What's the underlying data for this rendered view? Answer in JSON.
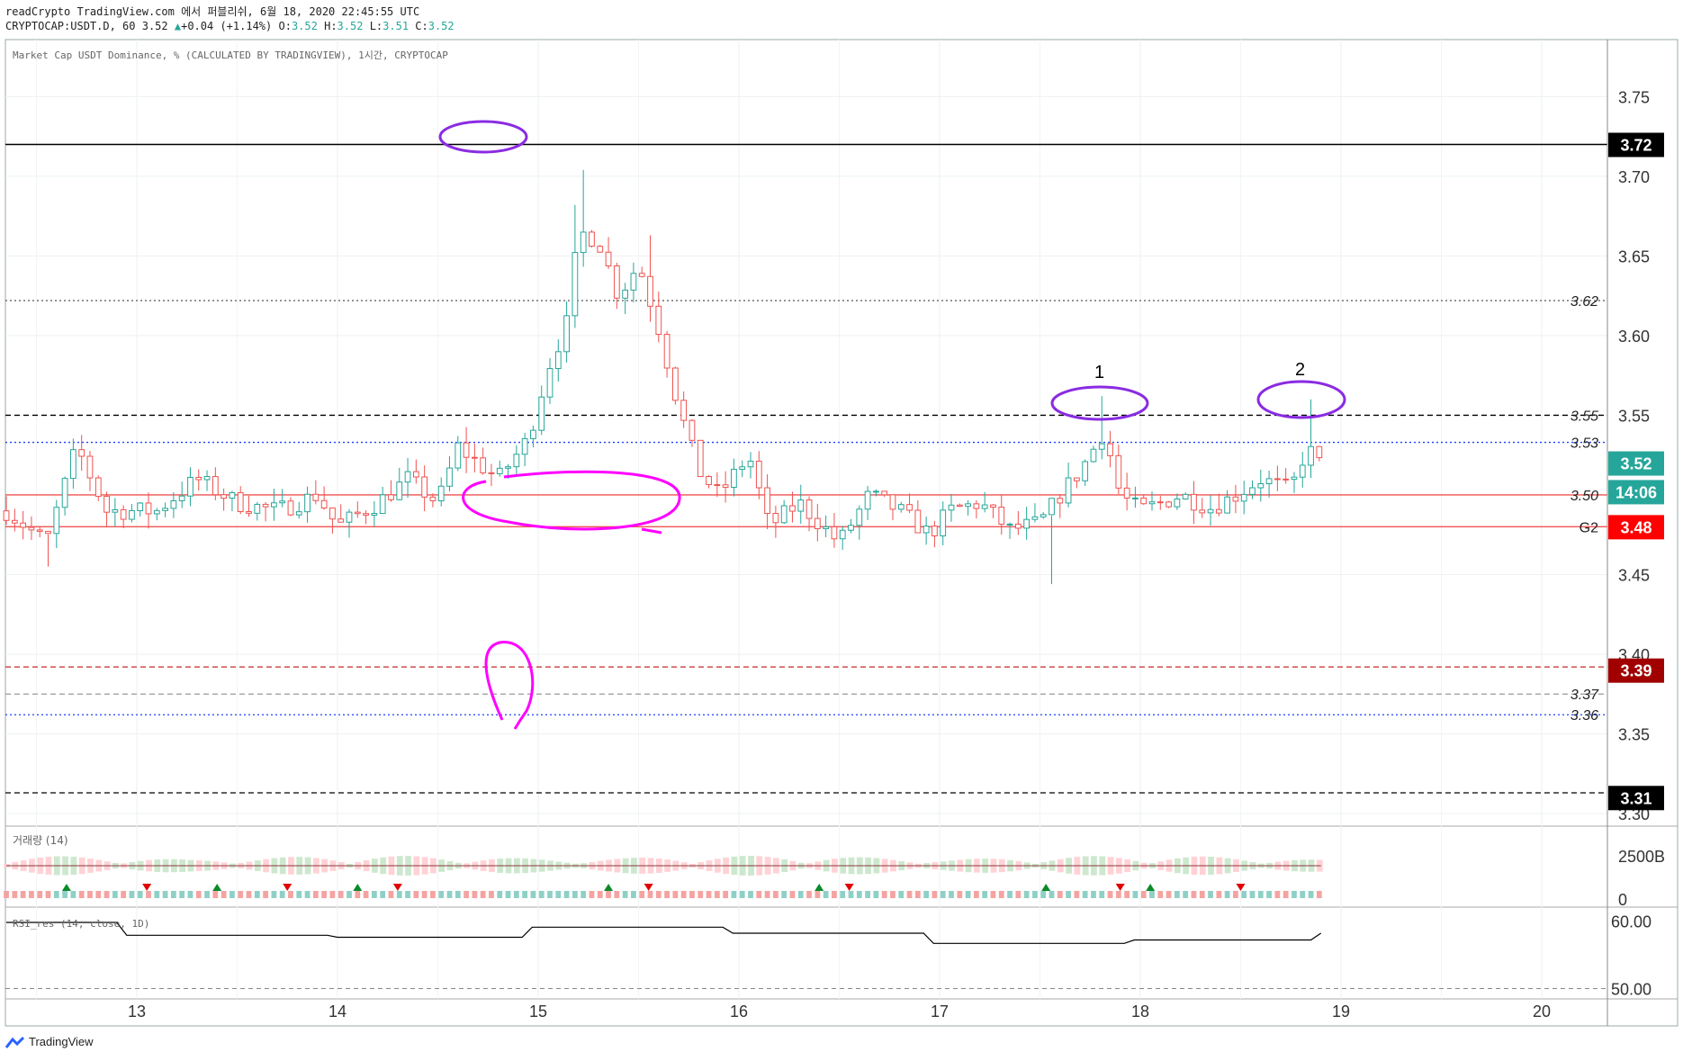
{
  "header": {
    "line1": "readCrypto TradingView.com 에서 퍼블리쉬, 6월 18, 2020 22:45:55 UTC",
    "symbol": "CRYPTOCAP:USDT.D, 60",
    "last": "3.52",
    "change_arrow": "▲",
    "change": "+0.04 (+1.14%)",
    "o_label": "O:",
    "o_val": "3.52",
    "h_label": "H:",
    "h_val": "3.52",
    "l_label": "L:",
    "l_val": "3.51",
    "c_label": "C:",
    "c_val": "3.52"
  },
  "legend": {
    "main": "Market Cap USDT Dominance, % (CALCULATED BY TRADINGVIEW), 1시간, CRYPTOCAP",
    "volume": "거래량 (14)",
    "rsi": "RSI_res (14, close, 1D)"
  },
  "brand": "TradingView",
  "colors": {
    "up": "#26a69a",
    "down": "#ef5350",
    "annotation_purple": "#8a2be2",
    "annotation_magenta": "#ff00ff",
    "line_blue": "#1e40ff"
  },
  "chart_data": [
    {
      "type": "candlestick",
      "ylim": [
        3.3,
        3.77
      ],
      "y_ticks": [
        "3.75",
        "3.70",
        "3.65",
        "3.60",
        "3.55",
        "3.50",
        "3.45",
        "3.40",
        "3.35",
        "3.30"
      ],
      "x_ticks": [
        "13",
        "14",
        "15",
        "16",
        "17",
        "18",
        "19",
        "20"
      ],
      "price_badges": [
        {
          "label": "3.72",
          "value": 3.72,
          "color": "#000000"
        },
        {
          "label": "3.52",
          "value": 3.52,
          "color": "#26a69a"
        },
        {
          "label": "14:06",
          "value": 3.502,
          "color": "#26a69a"
        },
        {
          "label": "3.48",
          "value": 3.48,
          "color": "#ff0000"
        },
        {
          "label": "3.39",
          "value": 3.39,
          "color": "#a00000"
        },
        {
          "label": "3.31",
          "value": 3.31,
          "color": "#000000"
        }
      ],
      "horizontal_lines": [
        {
          "value": 3.72,
          "style": "solid",
          "color": "#000000",
          "label": ""
        },
        {
          "value": 3.622,
          "style": "dotted",
          "color": "#555555",
          "label": "3.62"
        },
        {
          "value": 3.55,
          "style": "dashed",
          "color": "#000000",
          "label": "3.55"
        },
        {
          "value": 3.533,
          "style": "dotted",
          "color": "#1e40ff",
          "label": "3.53"
        },
        {
          "value": 3.5,
          "style": "solid",
          "color": "#ef5350",
          "label": "3.50"
        },
        {
          "value": 3.48,
          "style": "solid",
          "color": "#ef5350",
          "label": "G2"
        },
        {
          "value": 3.392,
          "style": "dashed",
          "color": "#c62828",
          "label": ""
        },
        {
          "value": 3.375,
          "style": "dashed",
          "color": "#999999",
          "label": "3.37"
        },
        {
          "value": 3.362,
          "style": "dotted",
          "color": "#1e40ff",
          "label": "3.36"
        },
        {
          "value": 3.313,
          "style": "dashed",
          "color": "#000000",
          "label": ""
        }
      ],
      "annotations": [
        "1",
        "2"
      ],
      "keypoints": [
        {
          "t": 12.35,
          "v": 3.49
        },
        {
          "t": 12.55,
          "v": 3.47
        },
        {
          "t": 12.7,
          "v": 3.53
        },
        {
          "t": 12.85,
          "v": 3.49
        },
        {
          "t": 13.1,
          "v": 3.49
        },
        {
          "t": 13.3,
          "v": 3.51
        },
        {
          "t": 13.5,
          "v": 3.495
        },
        {
          "t": 13.7,
          "v": 3.49
        },
        {
          "t": 13.9,
          "v": 3.5
        },
        {
          "t": 14.0,
          "v": 3.48
        },
        {
          "t": 14.2,
          "v": 3.495
        },
        {
          "t": 14.35,
          "v": 3.51
        },
        {
          "t": 14.5,
          "v": 3.495
        },
        {
          "t": 14.6,
          "v": 3.53
        },
        {
          "t": 14.8,
          "v": 3.51
        },
        {
          "t": 14.95,
          "v": 3.535
        },
        {
          "t": 15.05,
          "v": 3.58
        },
        {
          "t": 15.15,
          "v": 3.61
        },
        {
          "t": 15.2,
          "v": 3.665
        },
        {
          "t": 15.3,
          "v": 3.66
        },
        {
          "t": 15.4,
          "v": 3.625
        },
        {
          "t": 15.5,
          "v": 3.645
        },
        {
          "t": 15.6,
          "v": 3.605
        },
        {
          "t": 15.7,
          "v": 3.555
        },
        {
          "t": 15.8,
          "v": 3.515
        },
        {
          "t": 15.9,
          "v": 3.5
        },
        {
          "t": 16.05,
          "v": 3.525
        },
        {
          "t": 16.15,
          "v": 3.48
        },
        {
          "t": 16.3,
          "v": 3.495
        },
        {
          "t": 16.5,
          "v": 3.47
        },
        {
          "t": 16.65,
          "v": 3.5
        },
        {
          "t": 16.8,
          "v": 3.49
        },
        {
          "t": 16.95,
          "v": 3.475
        },
        {
          "t": 17.05,
          "v": 3.49
        },
        {
          "t": 17.2,
          "v": 3.495
        },
        {
          "t": 17.35,
          "v": 3.478
        },
        {
          "t": 17.5,
          "v": 3.482
        },
        {
          "t": 17.6,
          "v": 3.5
        },
        {
          "t": 17.7,
          "v": 3.515
        },
        {
          "t": 17.82,
          "v": 3.54
        },
        {
          "t": 17.9,
          "v": 3.5
        },
        {
          "t": 18.0,
          "v": 3.49
        },
        {
          "t": 18.2,
          "v": 3.5
        },
        {
          "t": 18.35,
          "v": 3.492
        },
        {
          "t": 18.45,
          "v": 3.498
        },
        {
          "t": 18.6,
          "v": 3.51
        },
        {
          "t": 18.75,
          "v": 3.503
        },
        {
          "t": 18.83,
          "v": 3.53
        },
        {
          "t": 18.9,
          "v": 3.518
        }
      ]
    },
    {
      "type": "bar",
      "name": "거래량 (14)",
      "y_ticks": [
        "2500B",
        "0"
      ],
      "xlim": [
        12.35,
        18.92
      ]
    },
    {
      "type": "line",
      "name": "RSI_res (14, close, 1D)",
      "y_ticks": [
        "60.00",
        "50.00"
      ],
      "ylim": [
        49,
        61
      ],
      "x": [
        12.35,
        12.9,
        12.95,
        13.95,
        14.0,
        14.92,
        14.97,
        15.92,
        15.97,
        16.92,
        16.97,
        17.92,
        17.97,
        18.85,
        18.9
      ],
      "values": [
        59.8,
        59.8,
        57.9,
        57.9,
        57.6,
        57.6,
        59.1,
        59.1,
        58.2,
        58.2,
        56.7,
        56.7,
        57.2,
        57.2,
        58.2
      ]
    }
  ]
}
